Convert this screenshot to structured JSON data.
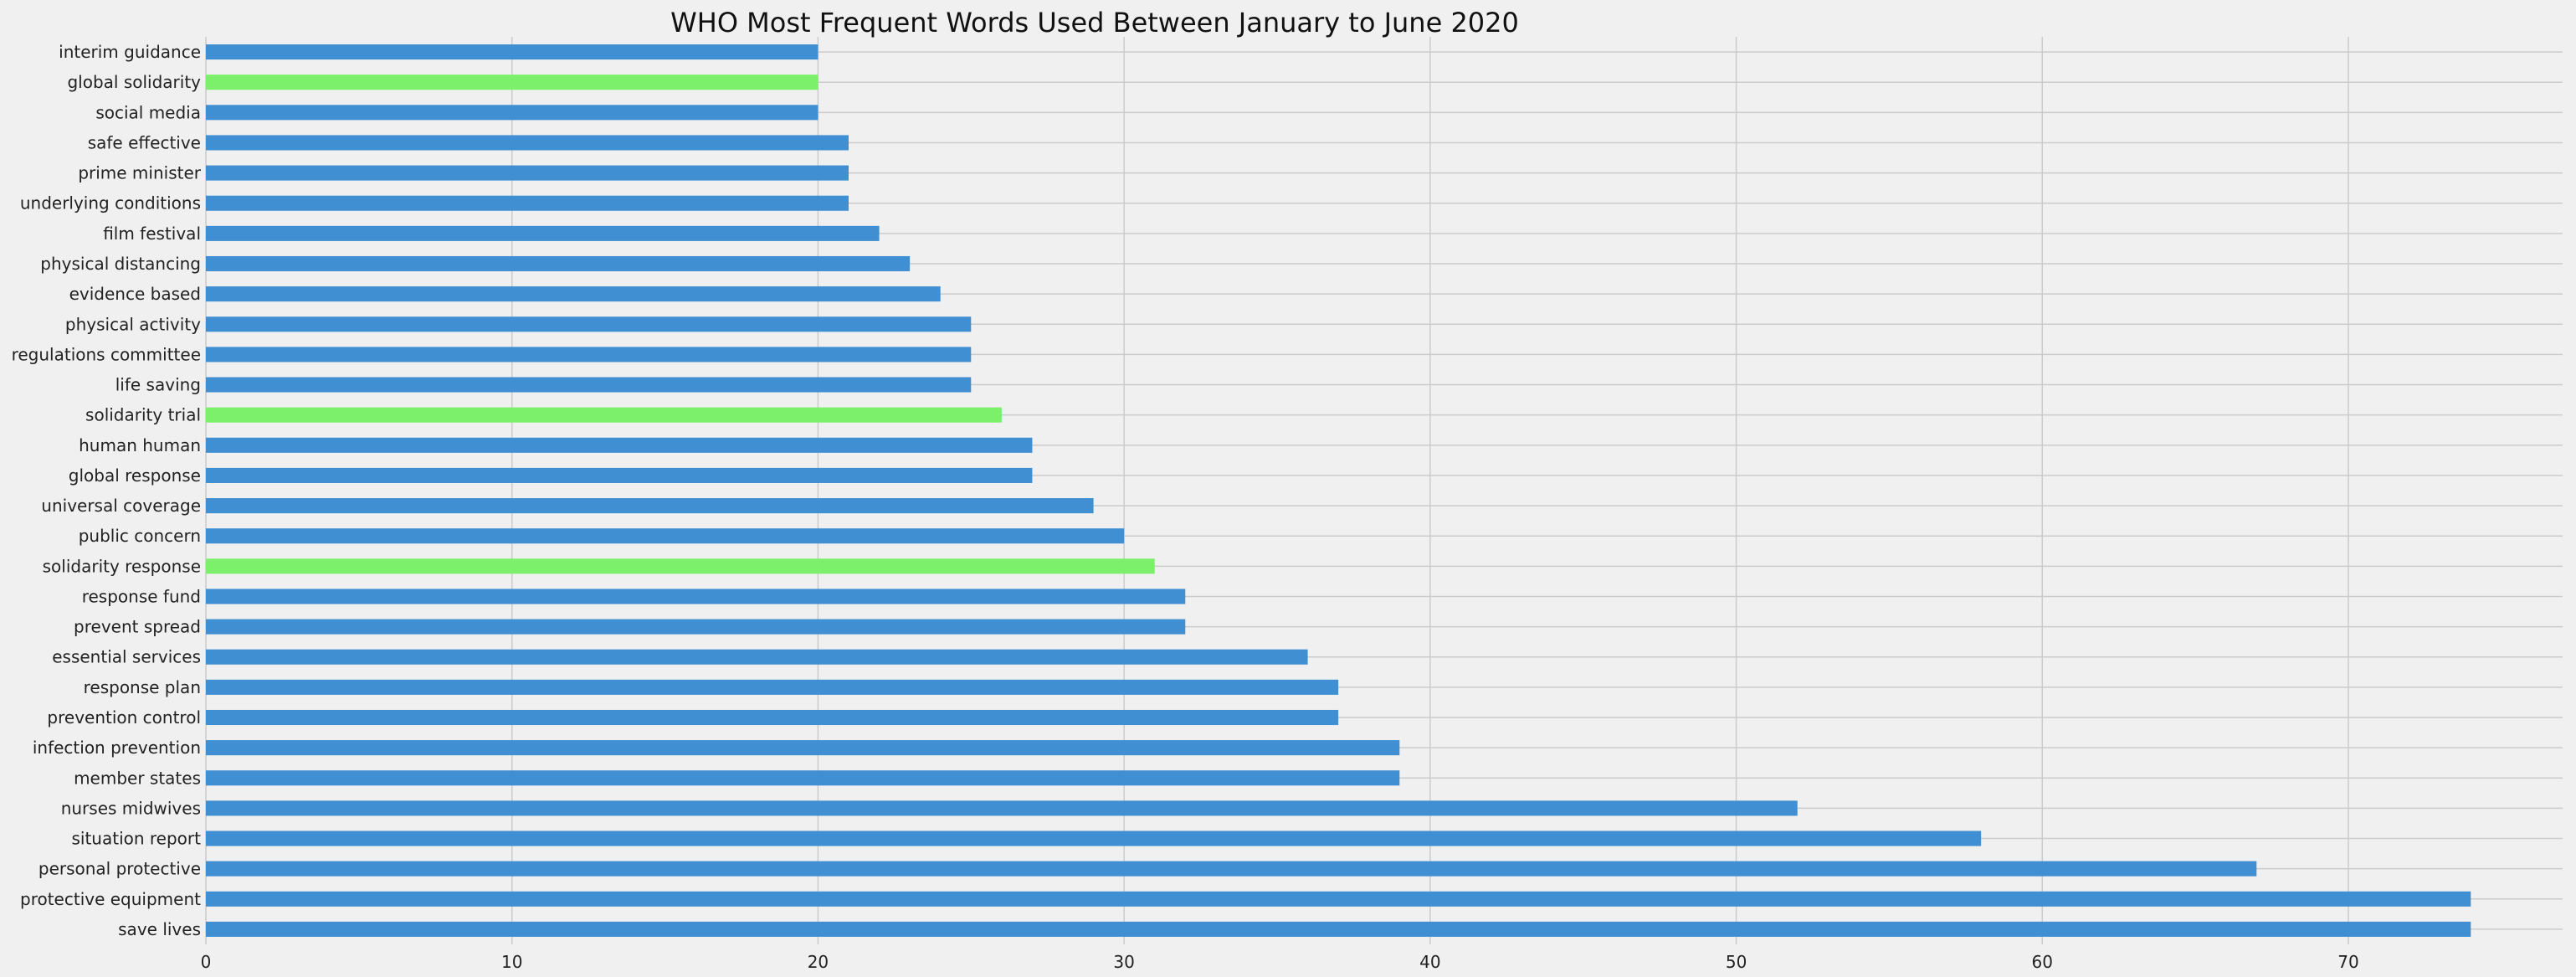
{
  "chart_data": {
    "type": "bar",
    "orientation": "horizontal",
    "title": "WHO Most Frequent Words Used Between January to June 2020",
    "xlabel": "",
    "ylabel": "",
    "xlim": [
      0,
      77
    ],
    "xticks": [
      0,
      10,
      20,
      30,
      40,
      50,
      60,
      70
    ],
    "grid": true,
    "colors": {
      "default": "#3f8fd2",
      "highlight": "#7cf06b",
      "background": "#f0f0f0",
      "grid": "#cbcbcb"
    },
    "categories": [
      "save lives",
      "protective equipment",
      "personal protective",
      "situation report",
      "nurses midwives",
      "member states",
      "infection prevention",
      "prevention control",
      "response plan",
      "essential services",
      "prevent spread",
      "response fund",
      "solidarity response",
      "public concern",
      "universal coverage",
      "global response",
      "human human",
      "solidarity trial",
      "life saving",
      "regulations committee",
      "physical activity",
      "evidence based",
      "physical distancing",
      "film festival",
      "underlying conditions",
      "prime minister",
      "safe effective",
      "social media",
      "global solidarity",
      "interim guidance"
    ],
    "values": [
      74,
      74,
      67,
      58,
      52,
      39,
      39,
      37,
      37,
      36,
      32,
      32,
      31,
      30,
      29,
      27,
      27,
      26,
      25,
      25,
      25,
      24,
      23,
      22,
      21,
      21,
      21,
      20,
      20,
      20
    ],
    "highlighted": [
      "solidarity response",
      "solidarity trial",
      "global solidarity"
    ]
  }
}
